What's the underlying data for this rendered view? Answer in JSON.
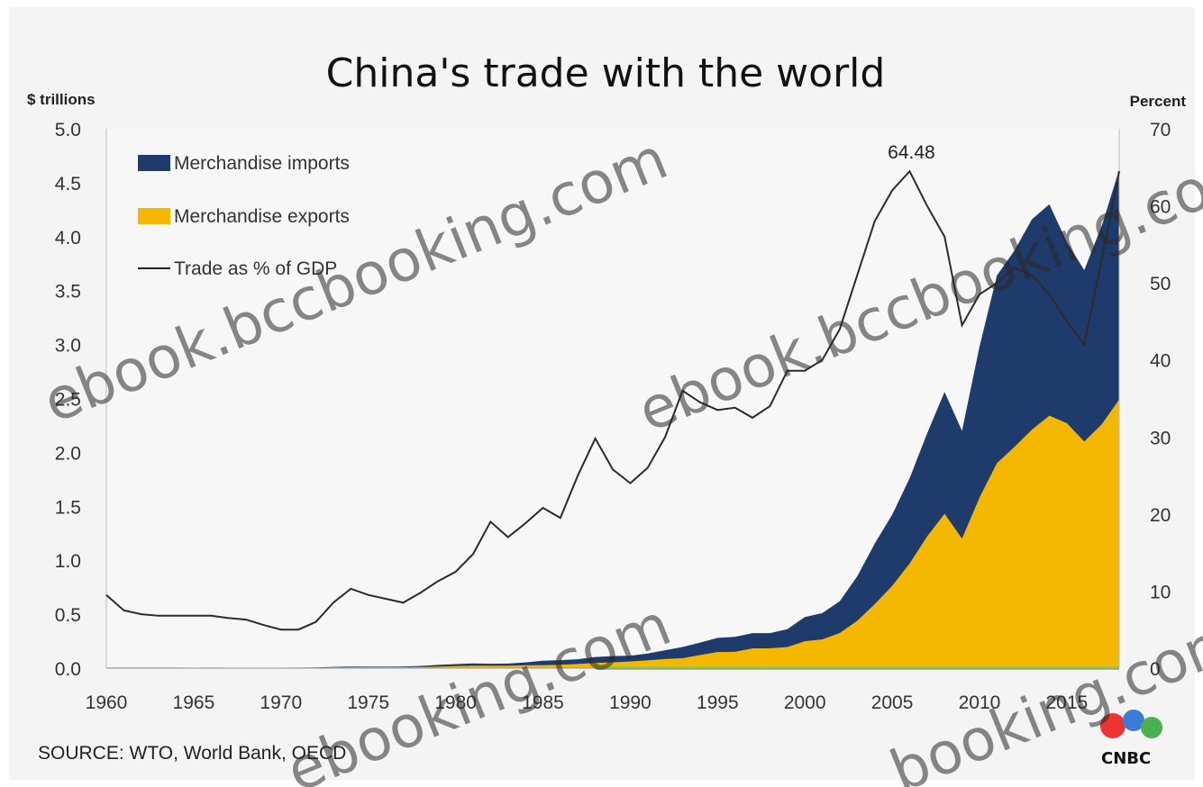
{
  "chart_data": {
    "type": "area",
    "title": "China's trade with the world",
    "y_left_label": "$ trillions",
    "y_right_label": "Percent",
    "ylim_left": [
      0,
      5
    ],
    "ylim_right": [
      0,
      70
    ],
    "xlim": [
      1960,
      2018
    ],
    "x_ticks": [
      "1960",
      "1965",
      "1970",
      "1975",
      "1980",
      "1985",
      "1990",
      "1995",
      "2000",
      "2005",
      "2010",
      "2015"
    ],
    "y_left_ticks": [
      "0.0",
      "0.5",
      "1.0",
      "1.5",
      "2.0",
      "2.5",
      "3.0",
      "3.5",
      "4.0",
      "4.5",
      "5.0"
    ],
    "y_right_ticks": [
      "0",
      "10",
      "20",
      "30",
      "40",
      "50",
      "60",
      "70"
    ],
    "legend": [
      {
        "label": "Merchandise imports",
        "color": "#1f3b6b",
        "kind": "box"
      },
      {
        "label": "Merchandise exports",
        "color": "#f5b800",
        "kind": "box"
      },
      {
        "label": "Trade as % of GDP",
        "color": "#222222",
        "kind": "line"
      }
    ],
    "annotation": {
      "text": "64.48",
      "year": 2006,
      "value": 64.48
    },
    "years": [
      1960,
      1961,
      1962,
      1963,
      1964,
      1965,
      1966,
      1967,
      1968,
      1969,
      1970,
      1971,
      1972,
      1973,
      1974,
      1975,
      1976,
      1977,
      1978,
      1979,
      1980,
      1981,
      1982,
      1983,
      1984,
      1985,
      1986,
      1987,
      1988,
      1989,
      1990,
      1991,
      1992,
      1993,
      1994,
      1995,
      1996,
      1997,
      1998,
      1999,
      2000,
      2001,
      2002,
      2003,
      2004,
      2005,
      2006,
      2007,
      2008,
      2009,
      2010,
      2011,
      2012,
      2013,
      2014,
      2015,
      2016,
      2017,
      2018
    ],
    "merchandise_exports": [
      0.003,
      0.003,
      0.003,
      0.003,
      0.003,
      0.002,
      0.003,
      0.002,
      0.002,
      0.002,
      0.002,
      0.003,
      0.003,
      0.006,
      0.007,
      0.007,
      0.007,
      0.008,
      0.01,
      0.014,
      0.018,
      0.022,
      0.022,
      0.022,
      0.026,
      0.027,
      0.031,
      0.039,
      0.048,
      0.053,
      0.062,
      0.072,
      0.085,
      0.092,
      0.121,
      0.149,
      0.151,
      0.183,
      0.184,
      0.195,
      0.249,
      0.266,
      0.326,
      0.438,
      0.593,
      0.762,
      0.969,
      1.22,
      1.43,
      1.2,
      1.58,
      1.9,
      2.05,
      2.21,
      2.34,
      2.27,
      2.1,
      2.26,
      2.49
    ],
    "merchandise_imports": [
      0.002,
      0.002,
      0.002,
      0.002,
      0.002,
      0.002,
      0.002,
      0.002,
      0.002,
      0.002,
      0.002,
      0.002,
      0.003,
      0.005,
      0.008,
      0.007,
      0.007,
      0.007,
      0.011,
      0.016,
      0.02,
      0.022,
      0.019,
      0.021,
      0.027,
      0.042,
      0.043,
      0.043,
      0.055,
      0.059,
      0.053,
      0.064,
      0.081,
      0.104,
      0.116,
      0.132,
      0.139,
      0.142,
      0.14,
      0.166,
      0.225,
      0.244,
      0.295,
      0.413,
      0.561,
      0.66,
      0.791,
      0.956,
      1.13,
      1.0,
      1.4,
      1.74,
      1.82,
      1.95,
      1.96,
      1.68,
      1.59,
      1.84,
      2.13
    ],
    "trade_pct_gdp": [
      9.5,
      7.5,
      7.0,
      6.8,
      6.8,
      6.8,
      6.8,
      6.5,
      6.3,
      5.6,
      5.0,
      5.0,
      6.0,
      8.5,
      10.3,
      9.5,
      9.0,
      8.5,
      9.8,
      11.3,
      12.5,
      14.8,
      19.0,
      17.0,
      18.8,
      20.8,
      19.5,
      25.0,
      29.8,
      25.8,
      24.0,
      26.0,
      30.0,
      36.0,
      34.5,
      33.5,
      33.8,
      32.5,
      34.0,
      38.6,
      38.6,
      40.0,
      44.0,
      51.0,
      58.0,
      62.0,
      64.48,
      60.0,
      56.0,
      44.5,
      48.5,
      50.0,
      52.0,
      51.0,
      48.5,
      45.0,
      42.0,
      53.0,
      64.5
    ]
  },
  "source": "SOURCE: WTO, World Bank, OECD",
  "watermarks": [
    "ebook.bccbooking.com",
    "ebook.bccbooking.com",
    "ebooking.com",
    "booking.com"
  ],
  "logo": {
    "text": "CNBC"
  }
}
